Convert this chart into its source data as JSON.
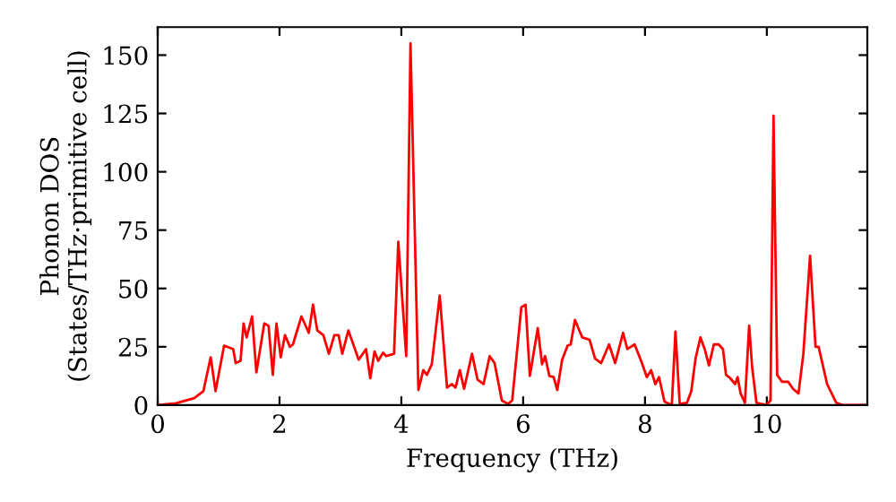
{
  "chart_data": {
    "type": "line",
    "xlabel": "Frequency (THz)",
    "ylabel": "Phonon DOS\n(States/THz·primitive cell)",
    "xlim": [
      0,
      11.65
    ],
    "ylim": [
      0,
      162
    ],
    "xticks": [
      0,
      2,
      4,
      6,
      8,
      10
    ],
    "yticks": [
      0,
      25,
      50,
      75,
      100,
      125,
      150
    ],
    "grid": false,
    "marker": "none",
    "line_style": "solid",
    "series": [
      {
        "color": "#ff0000",
        "x": [
          0,
          0.3,
          0.6,
          0.75,
          0.87,
          0.95,
          1.09,
          1.24,
          1.28,
          1.36,
          1.41,
          1.46,
          1.55,
          1.62,
          1.75,
          1.82,
          1.89,
          1.95,
          2.02,
          2.09,
          2.17,
          2.22,
          2.36,
          2.48,
          2.55,
          2.62,
          2.72,
          2.81,
          2.9,
          2.97,
          3.03,
          3.13,
          3.3,
          3.42,
          3.49,
          3.56,
          3.62,
          3.7,
          3.75,
          3.88,
          3.95,
          4.08,
          4.15,
          4.28,
          4.36,
          4.42,
          4.5,
          4.63,
          4.75,
          4.83,
          4.89,
          4.96,
          5.03,
          5.16,
          5.25,
          5.35,
          5.45,
          5.53,
          5.65,
          5.75,
          5.82,
          5.97,
          6.04,
          6.11,
          6.24,
          6.31,
          6.36,
          6.43,
          6.5,
          6.56,
          6.64,
          6.73,
          6.78,
          6.85,
          6.97,
          7.09,
          7.18,
          7.28,
          7.41,
          7.51,
          7.64,
          7.71,
          7.83,
          7.95,
          8.03,
          8.1,
          8.17,
          8.23,
          8.32,
          8.44,
          8.5,
          8.57,
          8.69,
          8.76,
          8.83,
          8.91,
          8.98,
          9.05,
          9.13,
          9.21,
          9.28,
          9.33,
          9.4,
          9.48,
          9.52,
          9.57,
          9.64,
          9.71,
          9.76,
          9.83,
          9.99,
          10.06,
          10.11,
          10.17,
          10.25,
          10.35,
          10.43,
          10.52,
          10.6,
          10.71,
          10.8,
          10.85,
          10.99,
          11.14,
          11.24,
          11.65
        ],
        "values": [
          0,
          0.8,
          3,
          6,
          20.5,
          6,
          25.5,
          24,
          18,
          19,
          35,
          29,
          38,
          14,
          35,
          34,
          13,
          35,
          20.5,
          30,
          25,
          26,
          38,
          31,
          43,
          32,
          30,
          22,
          30,
          30,
          22,
          32,
          19.5,
          24,
          11.5,
          23,
          19,
          22.5,
          21,
          22,
          70,
          21,
          155,
          6.5,
          15,
          13,
          17.5,
          47,
          7.5,
          9,
          7.5,
          15,
          7,
          22,
          11,
          9,
          21,
          18,
          2,
          0.5,
          2,
          42,
          43,
          12.5,
          33,
          17.5,
          21,
          12.5,
          12,
          6.5,
          19.5,
          25.5,
          26,
          36.5,
          29,
          28,
          20,
          18,
          26,
          18,
          31,
          24,
          26,
          18,
          12,
          15,
          9,
          12,
          1.5,
          0,
          31.5,
          0.5,
          1,
          6,
          20,
          29,
          24,
          17,
          26,
          26,
          24,
          13,
          11.5,
          9,
          12,
          5,
          1,
          34,
          16,
          1,
          0,
          2,
          124,
          13,
          10,
          10,
          7,
          5,
          22,
          64,
          25,
          25,
          9,
          1,
          0,
          0
        ]
      }
    ]
  }
}
